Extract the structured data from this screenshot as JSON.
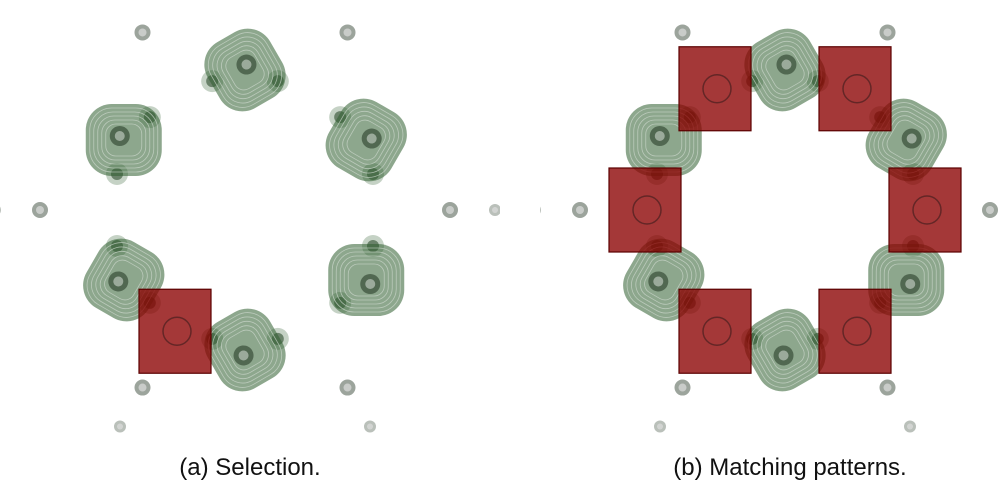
{
  "figure": {
    "panel_a": {
      "caption": "(a) Selection."
    },
    "panel_b": {
      "caption": "(b) Matching patterns."
    }
  },
  "colors": {
    "background": "#ffffff",
    "molecule_green": "#2f5f2f",
    "selection_red": "#8b0000"
  }
}
